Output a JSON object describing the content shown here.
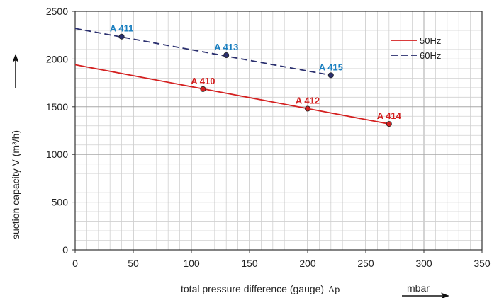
{
  "chart_data": {
    "type": "line",
    "xlabel": "total pressure difference (gauge)",
    "xlabel_symbol": "Δp",
    "x_unit": "mbar",
    "ylabel": "suction capacity V (m³/h)",
    "xlim": [
      0,
      350
    ],
    "ylim": [
      0,
      2500
    ],
    "x_ticks": [
      "0",
      "50",
      "100",
      "150",
      "200",
      "250",
      "300",
      "350"
    ],
    "y_ticks": [
      "0",
      "500",
      "1000",
      "1500",
      "2000",
      "2500"
    ],
    "grid": true,
    "legend_position": "top-right",
    "series": [
      {
        "name": "50Hz",
        "color": "#d42020",
        "style": "solid",
        "line": {
          "x": [
            0,
            270
          ],
          "y": [
            1940,
            1320
          ]
        },
        "points": [
          {
            "x": 110,
            "y": 1685,
            "label": "A 410"
          },
          {
            "x": 200,
            "y": 1480,
            "label": "A 412"
          },
          {
            "x": 270,
            "y": 1320,
            "label": "A 414"
          }
        ]
      },
      {
        "name": "60Hz",
        "color": "#2a2f6e",
        "label_color": "#1a7fc0",
        "style": "dashed",
        "line": {
          "x": [
            0,
            220
          ],
          "y": [
            2320,
            1830
          ]
        },
        "points": [
          {
            "x": 40,
            "y": 2235,
            "label": "A 411"
          },
          {
            "x": 130,
            "y": 2040,
            "label": "A 413"
          },
          {
            "x": 220,
            "y": 1830,
            "label": "A 415"
          }
        ]
      }
    ]
  }
}
